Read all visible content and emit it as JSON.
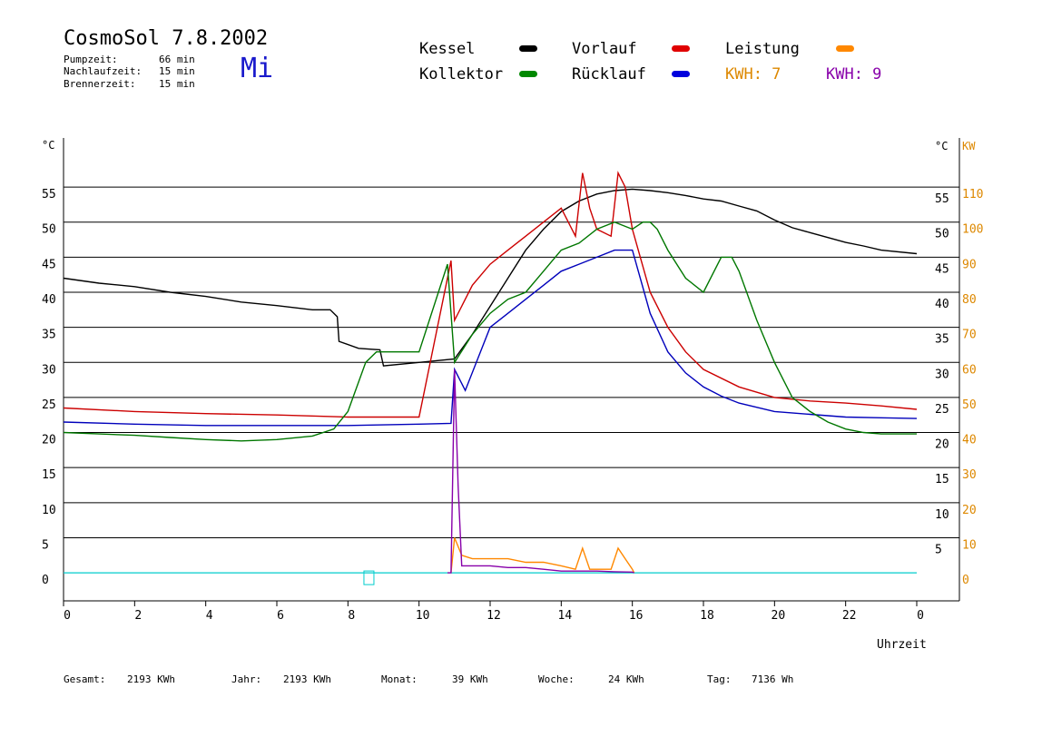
{
  "header": {
    "title": "CosmoSol 7.8.2002",
    "day": "Mi",
    "info": [
      {
        "label": "Pumpzeit:",
        "value": "66 min"
      },
      {
        "label": "Nachlaufzeit:",
        "value": "15 min"
      },
      {
        "label": "Brennerzeit:",
        "value": "15 min"
      }
    ]
  },
  "legend": {
    "kessel": {
      "label": "Kessel",
      "color": "#000000"
    },
    "vorlauf": {
      "label": "Vorlauf",
      "color": "#dd0000"
    },
    "leistung": {
      "label": "Leistung",
      "color": "#ff8800"
    },
    "kollektor": {
      "label": "Kollektor",
      "color": "#007700"
    },
    "ruecklauf": {
      "label": "Rücklauf",
      "color": "#0000cc"
    },
    "kwh_solar": {
      "label": "KWH: 7",
      "color": "#dd8800"
    },
    "kwh_burner": {
      "label": "KWH: 9",
      "color": "#8800aa"
    }
  },
  "footer": [
    {
      "label": "Gesamt:",
      "value": "2193 KWh"
    },
    {
      "label": "Jahr:",
      "value": "2193 KWh"
    },
    {
      "label": "Monat:",
      "value": "39 KWh"
    },
    {
      "label": "Woche:",
      "value": "24 KWh"
    },
    {
      "label": "Tag:",
      "value": "7136 Wh"
    }
  ],
  "chart_data": {
    "type": "line",
    "xlabel": "Uhrzeit",
    "ylabel_left": "°C",
    "ylabel_right_1": "°C",
    "ylabel_right_2": "KW",
    "xlim": [
      0,
      24
    ],
    "ylim": [
      -4,
      62
    ],
    "ylim_kw": [
      -8,
      124
    ],
    "x_ticks": [
      "0",
      "2",
      "4",
      "6",
      "8",
      "10",
      "12",
      "14",
      "16",
      "18",
      "20",
      "22",
      "0"
    ],
    "y_ticks": [
      0,
      5,
      10,
      15,
      20,
      25,
      30,
      35,
      40,
      45,
      50,
      55
    ],
    "y_ticks_right": [
      5,
      10,
      15,
      20,
      25,
      30,
      35,
      40,
      45,
      50,
      55
    ],
    "kw_ticks": [
      0,
      10,
      20,
      30,
      40,
      50,
      60,
      70,
      80,
      90,
      100,
      110
    ],
    "grid": true,
    "colors": {
      "kessel": "#000000",
      "vorlauf": "#cc0000",
      "ruecklauf": "#0000bb",
      "kollektor": "#007700",
      "leistung": "#ff8800",
      "kwh": "#8800aa",
      "baseline": "#00cccc"
    },
    "series": [
      {
        "name": "Kessel",
        "key": "kessel",
        "x": [
          0,
          1,
          2,
          3,
          4,
          5,
          6,
          7,
          7.5,
          7.7,
          7.75,
          8.3,
          8.9,
          9.0,
          10.0,
          11.0,
          11.5,
          12.0,
          12.5,
          13.0,
          13.5,
          14.0,
          14.5,
          15.0,
          15.5,
          16.0,
          16.5,
          17.0,
          17.5,
          18.0,
          18.5,
          19.0,
          19.5,
          20.0,
          20.5,
          21.0,
          21.5,
          22.0,
          22.5,
          23.0,
          24.0
        ],
        "y": [
          42,
          41.3,
          40.8,
          40,
          39.4,
          38.6,
          38.1,
          37.5,
          37.5,
          36.5,
          33,
          32,
          31.8,
          29.5,
          30,
          30.5,
          34,
          38,
          42,
          46,
          49,
          51.5,
          53,
          54,
          54.5,
          54.7,
          54.5,
          54.2,
          53.8,
          53.3,
          53,
          52.3,
          51.6,
          50.3,
          49.2,
          48.5,
          47.8,
          47.1,
          46.6,
          46,
          45.5
        ]
      },
      {
        "name": "Vorlauf",
        "key": "vorlauf",
        "x": [
          0,
          2,
          4,
          6,
          8,
          10,
          10.9,
          11.0,
          11.5,
          12,
          12.5,
          13,
          13.5,
          14,
          14.4,
          14.6,
          14.8,
          15.0,
          15.4,
          15.6,
          15.8,
          16.0,
          16.5,
          17.0,
          17.5,
          18.0,
          19,
          20,
          21,
          22,
          23,
          24
        ],
        "y": [
          23.5,
          23,
          22.7,
          22.5,
          22.2,
          22.2,
          44.5,
          36,
          41,
          44,
          46,
          48,
          50,
          52,
          48,
          57,
          52,
          49,
          48,
          57,
          55,
          49,
          40,
          35,
          31.5,
          29,
          26.5,
          25,
          24.5,
          24.2,
          23.8,
          23.3
        ]
      },
      {
        "name": "Rücklauf",
        "key": "ruecklauf",
        "x": [
          0,
          2,
          4,
          6,
          8,
          10,
          10.9,
          11.0,
          11.3,
          12,
          12.5,
          13,
          13.5,
          14,
          14.5,
          15.0,
          15.5,
          16.0,
          16.5,
          17.0,
          17.5,
          18.0,
          18.5,
          19,
          20,
          21,
          22,
          23,
          24
        ],
        "y": [
          21.5,
          21.2,
          21,
          21,
          21,
          21.2,
          21.3,
          29,
          26,
          35,
          37,
          39,
          41,
          43,
          44,
          45,
          46,
          46,
          37,
          31.5,
          28.5,
          26.5,
          25.2,
          24.2,
          23,
          22.6,
          22.2,
          22.1,
          22
        ]
      },
      {
        "name": "Kollektor",
        "key": "kollektor",
        "x": [
          0,
          1,
          2,
          3,
          4,
          5,
          6,
          7,
          7.6,
          8.0,
          8.5,
          8.8,
          9.0,
          10.0,
          10.8,
          11.0,
          11.5,
          12.0,
          12.5,
          13.0,
          13.5,
          14.0,
          14.5,
          15.0,
          15.5,
          16.0,
          16.3,
          16.5,
          16.7,
          17.0,
          17.5,
          18.0,
          18.5,
          18.8,
          19.0,
          19.5,
          20.0,
          20.5,
          21.0,
          21.5,
          22.0,
          22.5,
          23.0,
          24.0
        ],
        "y": [
          20,
          19.8,
          19.6,
          19.3,
          19,
          18.8,
          19,
          19.5,
          20.5,
          23,
          30,
          31.5,
          31.5,
          31.5,
          44,
          30,
          34,
          37,
          39,
          40,
          43,
          46,
          47,
          49,
          50,
          49,
          50,
          50,
          49,
          46,
          42,
          40,
          45,
          45,
          43,
          36,
          30,
          25,
          23,
          21.5,
          20.5,
          20,
          19.8,
          19.8
        ]
      }
    ],
    "power_series": [
      {
        "name": "Leistung",
        "key": "leistung",
        "unit": "KW",
        "x": [
          10.9,
          11.0,
          11.2,
          11.5,
          12,
          12.5,
          13,
          13.5,
          14,
          14.4,
          14.6,
          14.8,
          15,
          15.4,
          15.6,
          15.8,
          16.0,
          16.05
        ],
        "y": [
          0,
          10,
          5,
          4,
          4,
          4,
          3,
          3,
          2,
          1,
          7,
          1,
          1,
          1,
          7,
          4,
          1,
          0
        ]
      },
      {
        "name": "KWH",
        "key": "kwh",
        "unit": "KW",
        "x": [
          10.8,
          10.9,
          11.0,
          11.1,
          11.2,
          11.5,
          12,
          12.5,
          13,
          13.5,
          14,
          14.5,
          15,
          15.5,
          16,
          16.05
        ],
        "y": [
          0,
          0,
          58,
          25,
          2,
          2,
          2,
          1.5,
          1.5,
          1,
          0.5,
          0.5,
          0.5,
          0.3,
          0.2,
          0
        ]
      }
    ]
  }
}
